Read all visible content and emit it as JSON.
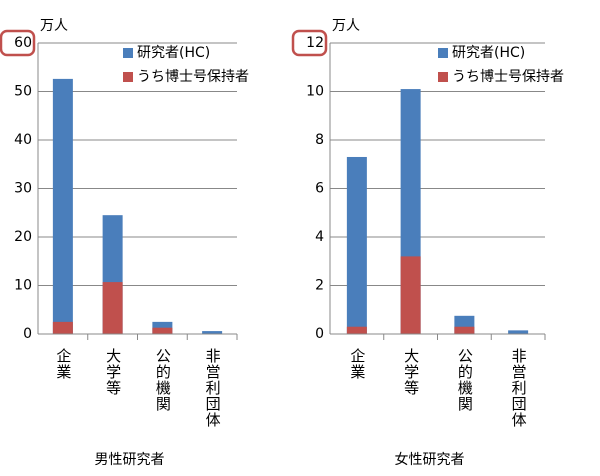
{
  "chart_data": [
    {
      "type": "bar",
      "unit": "万人",
      "xlabel": "男性研究者",
      "categories": [
        "企業",
        "大学等",
        "公的機関",
        "非営利団体"
      ],
      "series": [
        {
          "name": "研究者(HC)",
          "color": "#4a7ebb",
          "values": [
            52.6,
            24.5,
            2.5,
            0.6
          ]
        },
        {
          "name": "うち博士号保持者",
          "color": "#c0504d",
          "values": [
            2.5,
            10.7,
            1.3,
            0.1
          ]
        }
      ],
      "ylim": [
        0,
        60
      ],
      "yticks": [
        0,
        10,
        20,
        30,
        40,
        50,
        60
      ],
      "grid": true
    },
    {
      "type": "bar",
      "unit": "万人",
      "xlabel": "女性研究者",
      "categories": [
        "企業",
        "大学等",
        "公的機関",
        "非営利団体"
      ],
      "series": [
        {
          "name": "研究者(HC)",
          "color": "#4a7ebb",
          "values": [
            7.3,
            10.1,
            0.75,
            0.15
          ]
        },
        {
          "name": "うち博士号保持者",
          "color": "#c0504d",
          "values": [
            0.3,
            3.2,
            0.3,
            0.02
          ]
        }
      ],
      "ylim": [
        0,
        12
      ],
      "yticks": [
        0,
        2,
        4,
        6,
        8,
        10,
        12
      ],
      "grid": true
    }
  ]
}
